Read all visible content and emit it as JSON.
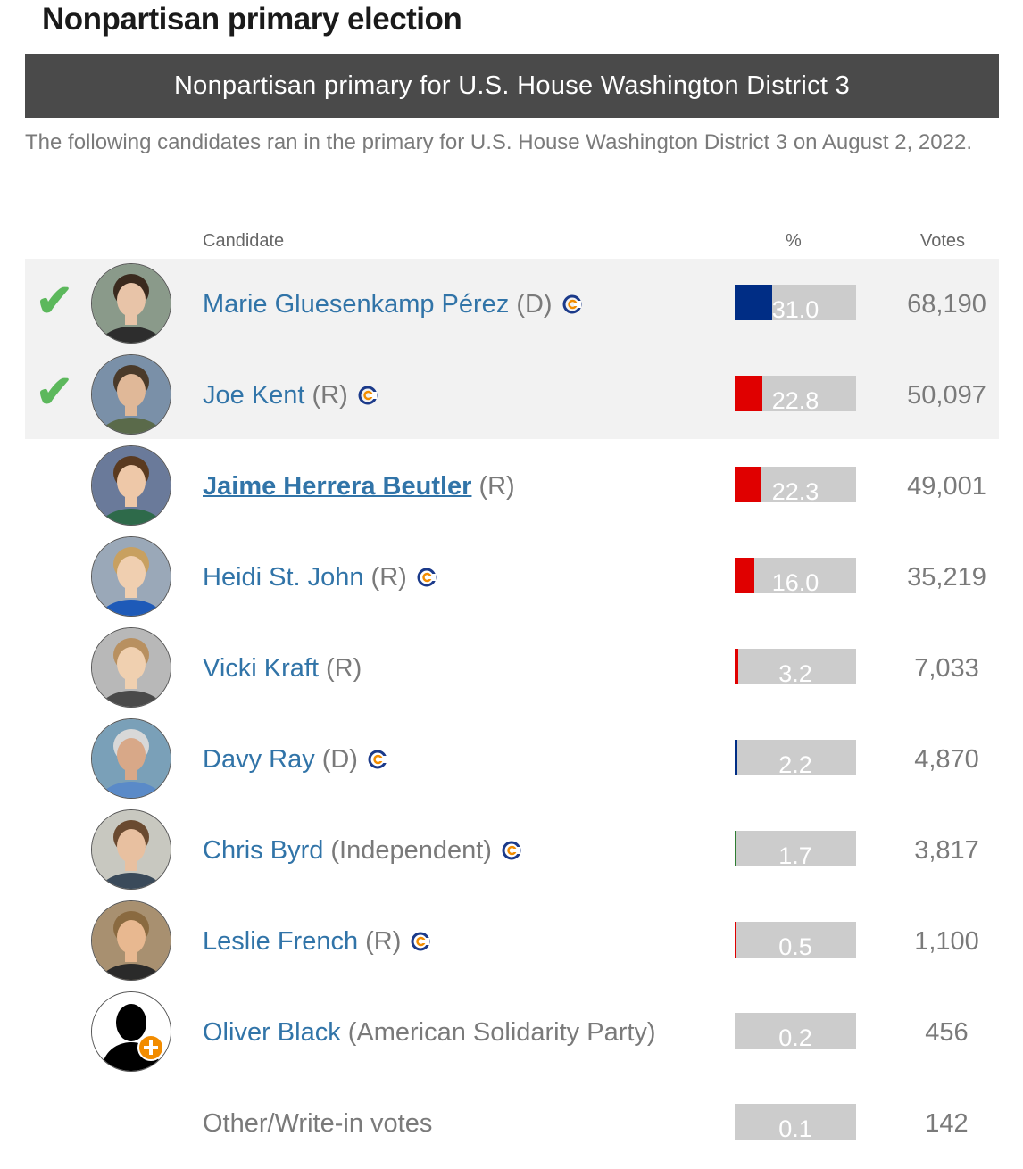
{
  "section_title": "Nonpartisan primary election",
  "race_title": "Nonpartisan primary for U.S. House Washington District 3",
  "race_description": "The following candidates ran in the primary for U.S. House Washington District 3 on August 2, 2022.",
  "columns": {
    "candidate": "Candidate",
    "percent": "%",
    "votes": "Votes"
  },
  "colors": {
    "democrat": "#002d85",
    "republican": "#e00000",
    "independent": "#2e7d32",
    "bar_bg": "#cccccc",
    "advanced_check": "#5cb85c",
    "link": "#3174a8"
  },
  "icons": {
    "advanced": "check-mark-icon",
    "connection_tag": "ballotpedia-c-icon"
  },
  "candidates": [
    {
      "name": "Marie Gluesenkamp Pérez",
      "party": "(D)",
      "percent": "31.0",
      "pct_value": 31.0,
      "votes": "68,190",
      "advanced": true,
      "tag": true,
      "party_color": "#002d85",
      "bold": false
    },
    {
      "name": "Joe Kent",
      "party": "(R)",
      "percent": "22.8",
      "pct_value": 22.8,
      "votes": "50,097",
      "advanced": true,
      "tag": true,
      "party_color": "#e00000",
      "bold": false
    },
    {
      "name": "Jaime Herrera Beutler",
      "party": "(R)",
      "percent": "22.3",
      "pct_value": 22.3,
      "votes": "49,001",
      "advanced": false,
      "tag": false,
      "party_color": "#e00000",
      "bold": true
    },
    {
      "name": "Heidi St. John",
      "party": "(R)",
      "percent": "16.0",
      "pct_value": 16.0,
      "votes": "35,219",
      "advanced": false,
      "tag": true,
      "party_color": "#e00000",
      "bold": false
    },
    {
      "name": "Vicki Kraft",
      "party": "(R)",
      "percent": "3.2",
      "pct_value": 3.2,
      "votes": "7,033",
      "advanced": false,
      "tag": false,
      "party_color": "#e00000",
      "bold": false
    },
    {
      "name": "Davy Ray",
      "party": "(D)",
      "percent": "2.2",
      "pct_value": 2.2,
      "votes": "4,870",
      "advanced": false,
      "tag": true,
      "party_color": "#002d85",
      "bold": false
    },
    {
      "name": "Chris Byrd",
      "party": "(Independent)",
      "percent": "1.7",
      "pct_value": 1.7,
      "votes": "3,817",
      "advanced": false,
      "tag": true,
      "party_color": "#2e7d32",
      "bold": false
    },
    {
      "name": "Leslie French",
      "party": "(R)",
      "percent": "0.5",
      "pct_value": 0.5,
      "votes": "1,100",
      "advanced": false,
      "tag": true,
      "party_color": "#e00000",
      "bold": false
    },
    {
      "name": "Oliver Black",
      "party": "(American Solidarity Party)",
      "percent": "0.2",
      "pct_value": 0.2,
      "votes": "456",
      "advanced": false,
      "tag": false,
      "party_color": "#888888",
      "bold": false
    }
  ],
  "other": {
    "label": "Other/Write-in votes",
    "percent": "0.1",
    "pct_value": 0.1,
    "votes": "142"
  }
}
